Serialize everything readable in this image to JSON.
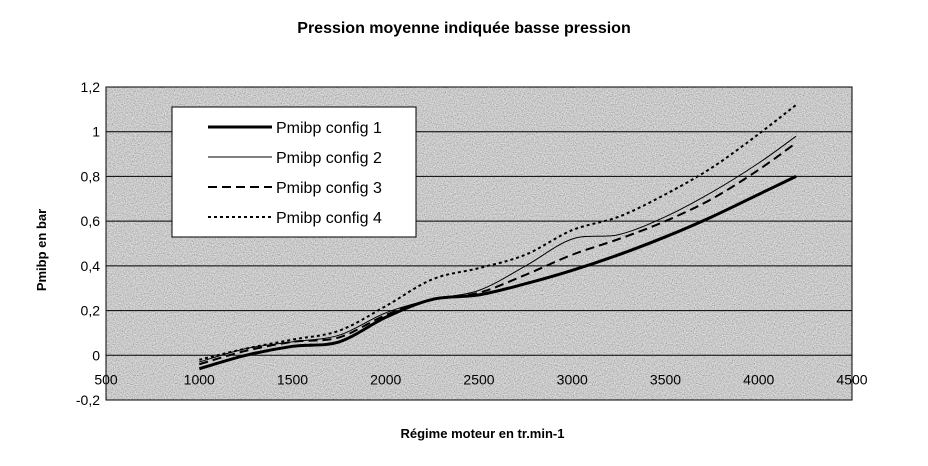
{
  "chart_data": {
    "type": "line",
    "title": "Pression moyenne indiquée basse pression",
    "xlabel": "Régime moteur en tr.min-1",
    "ylabel": "Pmibp en bar",
    "xlim": [
      500,
      4500
    ],
    "ylim": [
      -0.2,
      1.2
    ],
    "xticks": [
      500,
      1000,
      1500,
      2000,
      2500,
      3000,
      3500,
      4000,
      4500
    ],
    "xtick_labels": [
      "500",
      "1000",
      "1500",
      "2000",
      "2500",
      "3000",
      "3500",
      "4000",
      "4500"
    ],
    "yticks": [
      -0.2,
      0,
      0.2,
      0.4,
      0.6,
      0.8,
      1.0,
      1.2
    ],
    "ytick_labels": [
      "-0,2",
      "0",
      "0,2",
      "0,4",
      "0,6",
      "0,8",
      "1",
      "1,2"
    ],
    "grid": "horizontal",
    "legend_position": "top-left",
    "x": [
      1000,
      1250,
      1500,
      1750,
      2000,
      2250,
      2500,
      2750,
      3000,
      3250,
      3500,
      3750,
      4000,
      4200
    ],
    "series": [
      {
        "name": "Pmibp config 1",
        "style": "solid-thick",
        "values": [
          -0.06,
          0.0,
          0.04,
          0.06,
          0.17,
          0.25,
          0.27,
          0.32,
          0.38,
          0.45,
          0.53,
          0.62,
          0.72,
          0.8
        ]
      },
      {
        "name": "Pmibp config 2",
        "style": "solid-thin",
        "values": [
          -0.03,
          0.03,
          0.06,
          0.09,
          0.19,
          0.25,
          0.29,
          0.4,
          0.52,
          0.54,
          0.62,
          0.73,
          0.86,
          0.98
        ]
      },
      {
        "name": "Pmibp config 3",
        "style": "dashed",
        "values": [
          -0.04,
          0.02,
          0.06,
          0.08,
          0.18,
          0.25,
          0.28,
          0.36,
          0.45,
          0.52,
          0.6,
          0.7,
          0.83,
          0.95
        ]
      },
      {
        "name": "Pmibp config 4",
        "style": "dotted",
        "values": [
          -0.02,
          0.03,
          0.07,
          0.11,
          0.22,
          0.34,
          0.39,
          0.45,
          0.56,
          0.62,
          0.72,
          0.84,
          0.99,
          1.12
        ]
      }
    ]
  }
}
